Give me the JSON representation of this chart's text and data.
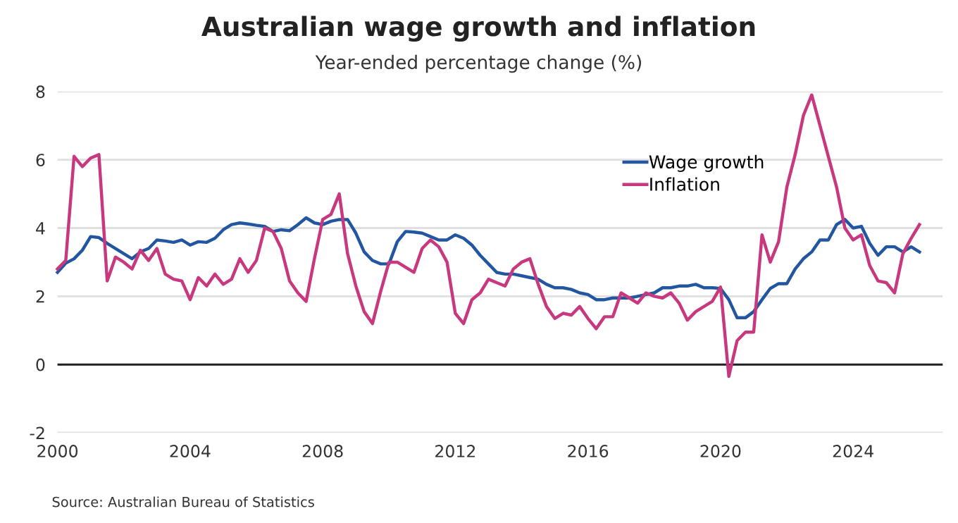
{
  "chart_data": {
    "type": "line",
    "title": "Australian wage growth and inflation",
    "subtitle": "Year-ended percentage change (%)",
    "annotations": [
      "Source: Australian Bureau of Statistics"
    ],
    "xlim": [
      2000,
      2026.7
    ],
    "xticks": [
      2000,
      2004,
      2008,
      2012,
      2016,
      2020,
      2024
    ],
    "ylim": [
      -2,
      8
    ],
    "yticks": [
      -2,
      0,
      2,
      4,
      6,
      8
    ],
    "grid": "y",
    "legend": "top right",
    "line_style": "solid",
    "marker": "none",
    "ref_lines": [
      {
        "axis": "y",
        "value": 0,
        "color": "#222222"
      }
    ],
    "series": [
      {
        "name": "Wage growth",
        "color": "#2356a0",
        "values": [
          2.7,
          2.97,
          3.1,
          3.35,
          3.75,
          3.72,
          3.55,
          3.4,
          3.25,
          3.1,
          3.3,
          3.4,
          3.65,
          3.62,
          3.58,
          3.65,
          3.5,
          3.6,
          3.58,
          3.7,
          3.95,
          4.1,
          4.15,
          4.12,
          4.08,
          4.05,
          3.9,
          3.95,
          3.92,
          4.1,
          4.3,
          4.15,
          4.1,
          4.2,
          4.25,
          4.25,
          3.85,
          3.3,
          3.05,
          2.95,
          2.95,
          3.6,
          3.9,
          3.88,
          3.85,
          3.75,
          3.65,
          3.65,
          3.8,
          3.7,
          3.5,
          3.2,
          2.95,
          2.7,
          2.65,
          2.65,
          2.6,
          2.55,
          2.5,
          2.35,
          2.25,
          2.25,
          2.2,
          2.1,
          2.05,
          1.9,
          1.9,
          1.95,
          1.95,
          1.95,
          2.0,
          2.05,
          2.1,
          2.25,
          2.25,
          2.3,
          2.3,
          2.35,
          2.25,
          2.25,
          2.23,
          1.9,
          1.37,
          1.37,
          1.55,
          1.9,
          2.23,
          2.37,
          2.37,
          2.8,
          3.1,
          3.3,
          3.65,
          3.65,
          4.1,
          4.25,
          4.0,
          4.05,
          3.55,
          3.2,
          3.45,
          3.45,
          3.3,
          3.45,
          3.3
        ]
      },
      {
        "name": "Inflation",
        "color": "#c8387f",
        "values": [
          2.8,
          3.05,
          6.1,
          5.8,
          6.05,
          6.15,
          2.45,
          3.15,
          3.0,
          2.8,
          3.35,
          3.05,
          3.4,
          2.65,
          2.5,
          2.45,
          1.9,
          2.55,
          2.3,
          2.65,
          2.35,
          2.5,
          3.1,
          2.7,
          3.05,
          4.0,
          3.9,
          3.4,
          2.45,
          2.1,
          1.85,
          3.1,
          4.25,
          4.4,
          5.0,
          3.25,
          2.3,
          1.55,
          1.2,
          2.15,
          3.0,
          3.0,
          2.85,
          2.7,
          3.4,
          3.65,
          3.45,
          3.0,
          1.5,
          1.2,
          1.9,
          2.1,
          2.5,
          2.4,
          2.3,
          2.8,
          3.0,
          3.1,
          2.35,
          1.7,
          1.35,
          1.5,
          1.45,
          1.7,
          1.35,
          1.05,
          1.4,
          1.4,
          2.1,
          1.95,
          1.8,
          2.1,
          2.0,
          1.95,
          2.1,
          1.8,
          1.3,
          1.55,
          1.7,
          1.85,
          2.27,
          -0.35,
          0.7,
          0.95,
          0.95,
          3.8,
          3.0,
          3.6,
          5.2,
          6.15,
          7.3,
          7.9,
          7.0,
          6.1,
          5.2,
          4.0,
          3.65,
          3.8,
          2.9,
          2.45,
          2.4,
          2.1,
          3.25,
          3.7,
          4.1
        ]
      }
    ],
    "x": [
      2000,
      2000.25,
      2000.5,
      2000.75,
      2001,
      2001.25,
      2001.5,
      2001.75,
      2002,
      2002.25,
      2002.5,
      2002.75,
      2003,
      2003.25,
      2003.5,
      2003.75,
      2004,
      2004.25,
      2004.5,
      2004.75,
      2005,
      2005.25,
      2005.5,
      2005.75,
      2006,
      2006.25,
      2006.5,
      2006.75,
      2007,
      2007.25,
      2007.5,
      2007.75,
      2008,
      2008.25,
      2008.5,
      2008.75,
      2009,
      2009.25,
      2009.5,
      2009.75,
      2010,
      2010.25,
      2010.5,
      2010.75,
      2011,
      2011.25,
      2011.5,
      2011.75,
      2012,
      2012.25,
      2012.5,
      2012.75,
      2013,
      2013.25,
      2013.5,
      2013.75,
      2014,
      2014.25,
      2014.5,
      2014.75,
      2015,
      2015.25,
      2015.5,
      2015.75,
      2016,
      2016.25,
      2016.5,
      2016.75,
      2017,
      2017.25,
      2017.5,
      2017.75,
      2018,
      2018.25,
      2018.5,
      2018.75,
      2019,
      2019.25,
      2019.5,
      2019.75,
      2020,
      2020.25,
      2020.5,
      2020.75,
      2021,
      2021.25,
      2021.5,
      2021.75,
      2022,
      2022.25,
      2022.5,
      2022.75,
      2023,
      2023.25,
      2023.5,
      2023.75,
      2024,
      2024.25,
      2024.5,
      2024.75,
      2025,
      2025.25,
      2025.5,
      2025.75,
      2026
    ]
  }
}
